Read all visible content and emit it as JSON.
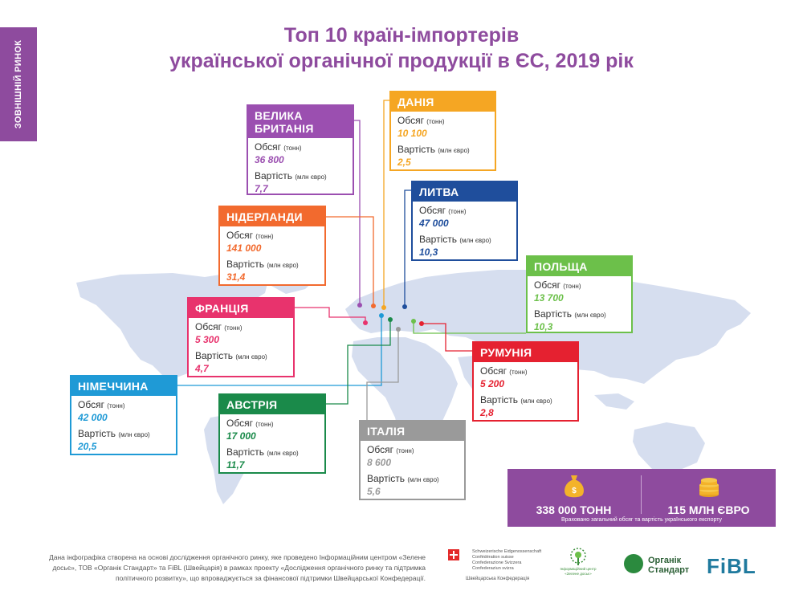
{
  "side_tab": "ЗОВНІШНІЙ РИНОК",
  "title": {
    "line1": "Топ 10 країн-імпортерів",
    "line2": "української органічної продукції в ЄС, 2019 рік"
  },
  "labels": {
    "volume": "Обсяг",
    "volume_unit": "(тонн)",
    "value": "Вартість",
    "value_unit": "(млн євро)"
  },
  "countries": [
    {
      "key": "uk",
      "name_line1": "ВЕЛИКА",
      "name_line2": "БРИТАНІЯ",
      "volume": "36 800",
      "value": "7,7",
      "color": "#9b4fb0"
    },
    {
      "key": "denmark",
      "name_line1": "ДАНІЯ",
      "volume": "10 100",
      "value": "2,5",
      "color": "#f5a623"
    },
    {
      "key": "lithuania",
      "name_line1": "ЛИТВА",
      "volume": "47 000",
      "value": "10,3",
      "color": "#1f4e9c"
    },
    {
      "key": "netherlands",
      "name_line1": "НІДЕРЛАНДИ",
      "volume": "141 000",
      "value": "31,4",
      "color": "#f26a2e"
    },
    {
      "key": "poland",
      "name_line1": "ПОЛЬЩА",
      "volume": "13 700",
      "value": "10,3",
      "color": "#6cc04a"
    },
    {
      "key": "france",
      "name_line1": "ФРАНЦІЯ",
      "volume": "5 300",
      "value": "4,7",
      "color": "#e8336d"
    },
    {
      "key": "romania",
      "name_line1": "РУМУНІЯ",
      "volume": "5 200",
      "value": "2,8",
      "color": "#e52130"
    },
    {
      "key": "germany",
      "name_line1": "НІМЕЧЧИНА",
      "volume": "42 000",
      "value": "20,5",
      "color": "#1f9ad6"
    },
    {
      "key": "austria",
      "name_line1": "АВСТРІЯ",
      "volume": "17 000",
      "value": "11,7",
      "color": "#1a8a4a"
    },
    {
      "key": "italy",
      "name_line1": "ІТАЛІЯ",
      "volume": "8 600",
      "value": "5,6",
      "color": "#9a9a9a"
    }
  ],
  "totals": {
    "volume": "338 000 ТОНН",
    "value": "115 МЛН ЄВРО",
    "note": "Враховано загальний обсяг та вартість українського експорту",
    "bag_icon": "money-bag-icon",
    "coins_icon": "coins-icon",
    "color": "#8e4b9e"
  },
  "footer": {
    "text": "Дана інфографіка створена на основі дослідження органічного ринку, яке проведено Інформаційним центром «Зелене досьє», ТОВ «Органік Стандарт» та FiBL (Швейцарія) в рамках проекту «Дослідження органічного ринку та підтримка політичного розвитку», що впроваджується за фінансової підтримки Швейцарської Конфедерації.",
    "swiss_lines": [
      "Schweizerische Eidgenossenschaft",
      "Confédération suisse",
      "Confederazione Svizzera",
      "Confederaziun svizra"
    ],
    "swiss_caption": "Швейцарська Конфедерація",
    "tree_caption": "Інформаційний центр «Зелене досьє»",
    "organic_standard": "Органік Стандарт",
    "fibl": "FiBL"
  },
  "map_color": "#d6deef"
}
